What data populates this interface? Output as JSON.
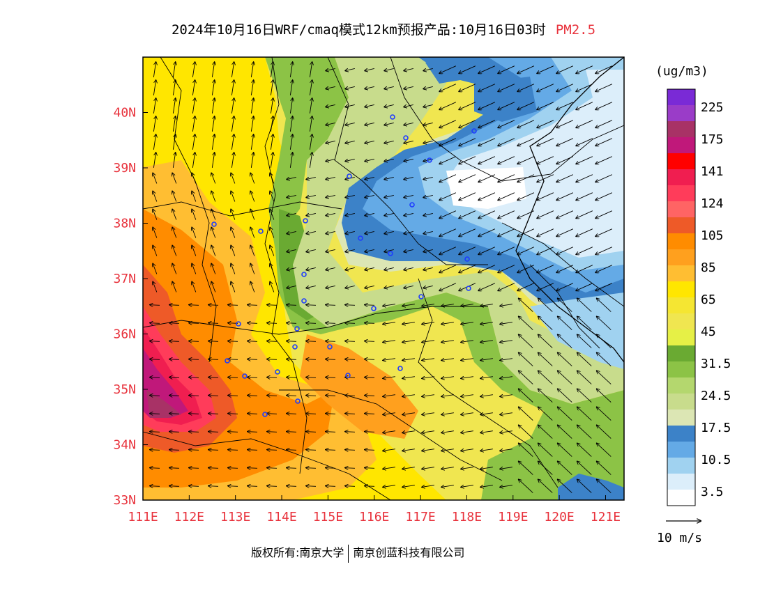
{
  "title": {
    "main": "2024年10月16日WRF/cmaq模式12km预报产品:10月16日03时",
    "species": "PM2.5"
  },
  "map": {
    "lon_range": [
      111,
      121.4
    ],
    "lat_range": [
      33,
      41
    ],
    "lon_ticks": [
      "111E",
      "112E",
      "113E",
      "114E",
      "115E",
      "116E",
      "117E",
      "118E",
      "119E",
      "120E",
      "121E"
    ],
    "lat_ticks": [
      "33N",
      "34N",
      "35N",
      "36N",
      "37N",
      "38N",
      "39N",
      "40N"
    ]
  },
  "colorbar": {
    "unit": "(ug/m3)",
    "levels": [
      {
        "label": "225",
        "color": "#7a2ad6"
      },
      {
        "label": "",
        "color": "#9a3cc8"
      },
      {
        "label": "175",
        "color": "#a83266"
      },
      {
        "label": "",
        "color": "#c0187a"
      },
      {
        "label": "141",
        "color": "#ff0000"
      },
      {
        "label": "",
        "color": "#f01e50"
      },
      {
        "label": "124",
        "color": "#ff3c5a"
      },
      {
        "label": "",
        "color": "#ff6464"
      },
      {
        "label": "105",
        "color": "#ee5a28"
      },
      {
        "label": "",
        "color": "#ff8c00"
      },
      {
        "label": "85",
        "color": "#ffa01e"
      },
      {
        "label": "",
        "color": "#ffbe32"
      },
      {
        "label": "65",
        "color": "#ffe600"
      },
      {
        "label": "",
        "color": "#f5e632"
      },
      {
        "label": "45",
        "color": "#f0e650"
      },
      {
        "label": "",
        "color": "#e6f046"
      },
      {
        "label": "31.5",
        "color": "#6aaa32"
      },
      {
        "label": "",
        "color": "#8cc346"
      },
      {
        "label": "24.5",
        "color": "#b4d76e"
      },
      {
        "label": "",
        "color": "#c8dc8c"
      },
      {
        "label": "17.5",
        "color": "#dce6b4"
      },
      {
        "label": "",
        "color": "#3c82c8"
      },
      {
        "label": "10.5",
        "color": "#64aae6"
      },
      {
        "label": "",
        "color": "#a0d2f0"
      },
      {
        "label": "3.5",
        "color": "#dceefa"
      },
      {
        "label": "",
        "color": "#ffffff"
      }
    ]
  },
  "wind_legend": {
    "label": "10 m/s"
  },
  "footer": {
    "left": "版权所有:南京大学",
    "right": "南京创蓝科技有限公司"
  }
}
